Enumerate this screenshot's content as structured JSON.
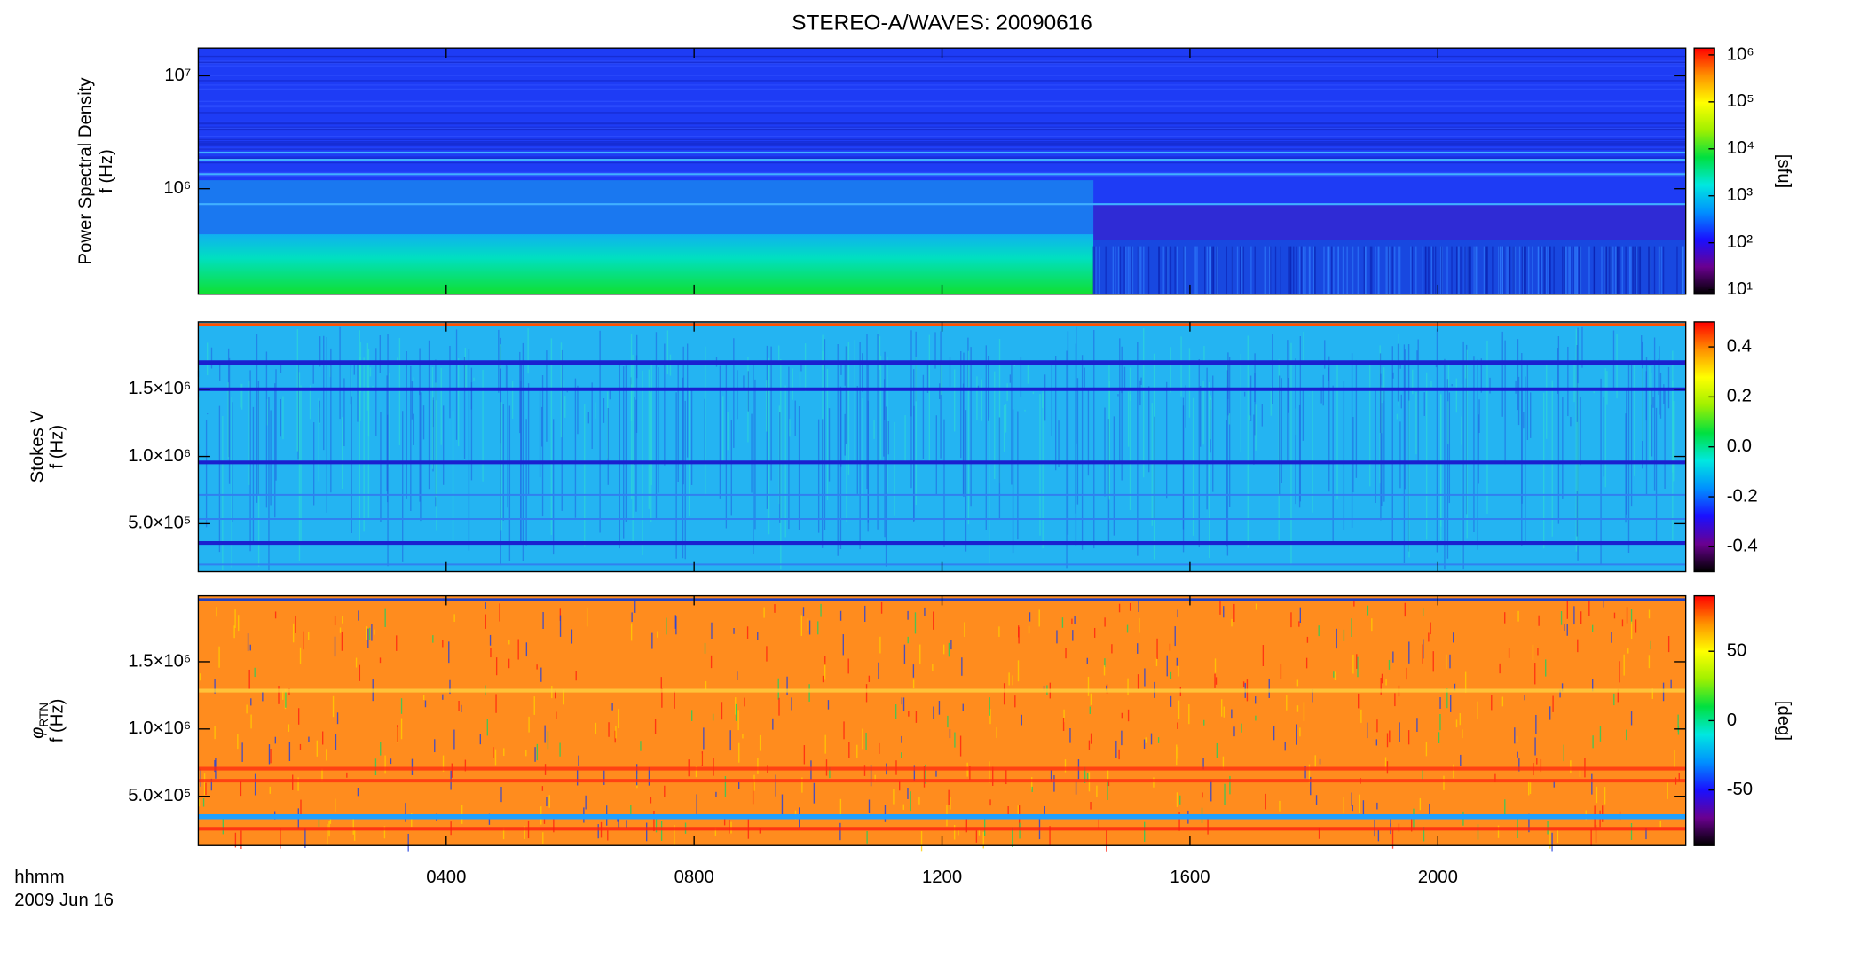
{
  "chart_data": [
    {
      "type": "spectrogram",
      "title": "STEREO-A/WAVES: 20090616",
      "ylabel": "Power Spectral Density",
      "ylabel2": "f (Hz)",
      "yscale": "log",
      "ylim": [
        116000,
        17600000
      ],
      "yticks": [
        {
          "value": 1000000,
          "label": "10⁶"
        },
        {
          "value": 10000000,
          "label": "10⁷"
        }
      ],
      "colorbar": {
        "label": "[sfu]",
        "scale": "log",
        "lim": [
          8,
          1400000
        ],
        "ticks": [
          {
            "value": 10,
            "label": "10¹"
          },
          {
            "value": 100,
            "label": "10²"
          },
          {
            "value": 1000,
            "label": "10³"
          },
          {
            "value": 10000,
            "label": "10⁴"
          },
          {
            "value": 100000,
            "label": "10⁵"
          },
          {
            "value": 1000000,
            "label": "10⁶"
          }
        ]
      },
      "colormap": [
        "#000000",
        "#6a0090",
        "#1a10ff",
        "#0090ff",
        "#00e8e0",
        "#00e040",
        "#a0f000",
        "#ffff00",
        "#ff9000",
        "#ff0000"
      ]
    },
    {
      "type": "spectrogram",
      "ylabel": "Stokes V",
      "ylabel2": "f (Hz)",
      "yscale": "linear",
      "ylim": [
        143000,
        2000000
      ],
      "yticks": [
        {
          "value": 500000,
          "label": "5.0×10⁵"
        },
        {
          "value": 1000000,
          "label": "1.0×10⁶"
        },
        {
          "value": 1500000,
          "label": "1.5×10⁶"
        }
      ],
      "colorbar": {
        "scale": "linear",
        "lim": [
          -0.5,
          0.5
        ],
        "ticks": [
          -0.4,
          -0.2,
          {
            "value": 0,
            "label": "0.0"
          },
          0.2,
          0.4
        ]
      },
      "colormap": [
        "#000000",
        "#6a0090",
        "#1a10ff",
        "#0090ff",
        "#00e8e0",
        "#00e040",
        "#a0f000",
        "#ffff00",
        "#ff9000",
        "#ff0000"
      ]
    },
    {
      "type": "spectrogram",
      "ylabel": "φ",
      "ylabel_subscript": "RTN",
      "ylabel2": "f (Hz)",
      "yscale": "linear",
      "ylim": [
        134000,
        1990000
      ],
      "yticks": [
        {
          "value": 500000,
          "label": "5.0×10⁵"
        },
        {
          "value": 1000000,
          "label": "1.0×10⁶"
        },
        {
          "value": 1500000,
          "label": "1.5×10⁶"
        }
      ],
      "colorbar": {
        "label": "[deg]",
        "scale": "linear",
        "lim": [
          -90,
          90
        ],
        "ticks": [
          -50,
          0,
          50
        ]
      },
      "colormap": [
        "#000000",
        "#6a0090",
        "#1a10ff",
        "#0090ff",
        "#00e8e0",
        "#00e040",
        "#a0f000",
        "#ffff00",
        "#ff9000",
        "#ff0000"
      ],
      "xlabel": "hhmm",
      "date": "2009 Jun 16",
      "xlim": [
        0,
        24
      ],
      "xticks": [
        {
          "value": 4,
          "label": "0400"
        },
        {
          "value": 8,
          "label": "0800"
        },
        {
          "value": 12,
          "label": "1200"
        },
        {
          "value": 16,
          "label": "1600"
        },
        {
          "value": 20,
          "label": "2000"
        }
      ]
    }
  ]
}
